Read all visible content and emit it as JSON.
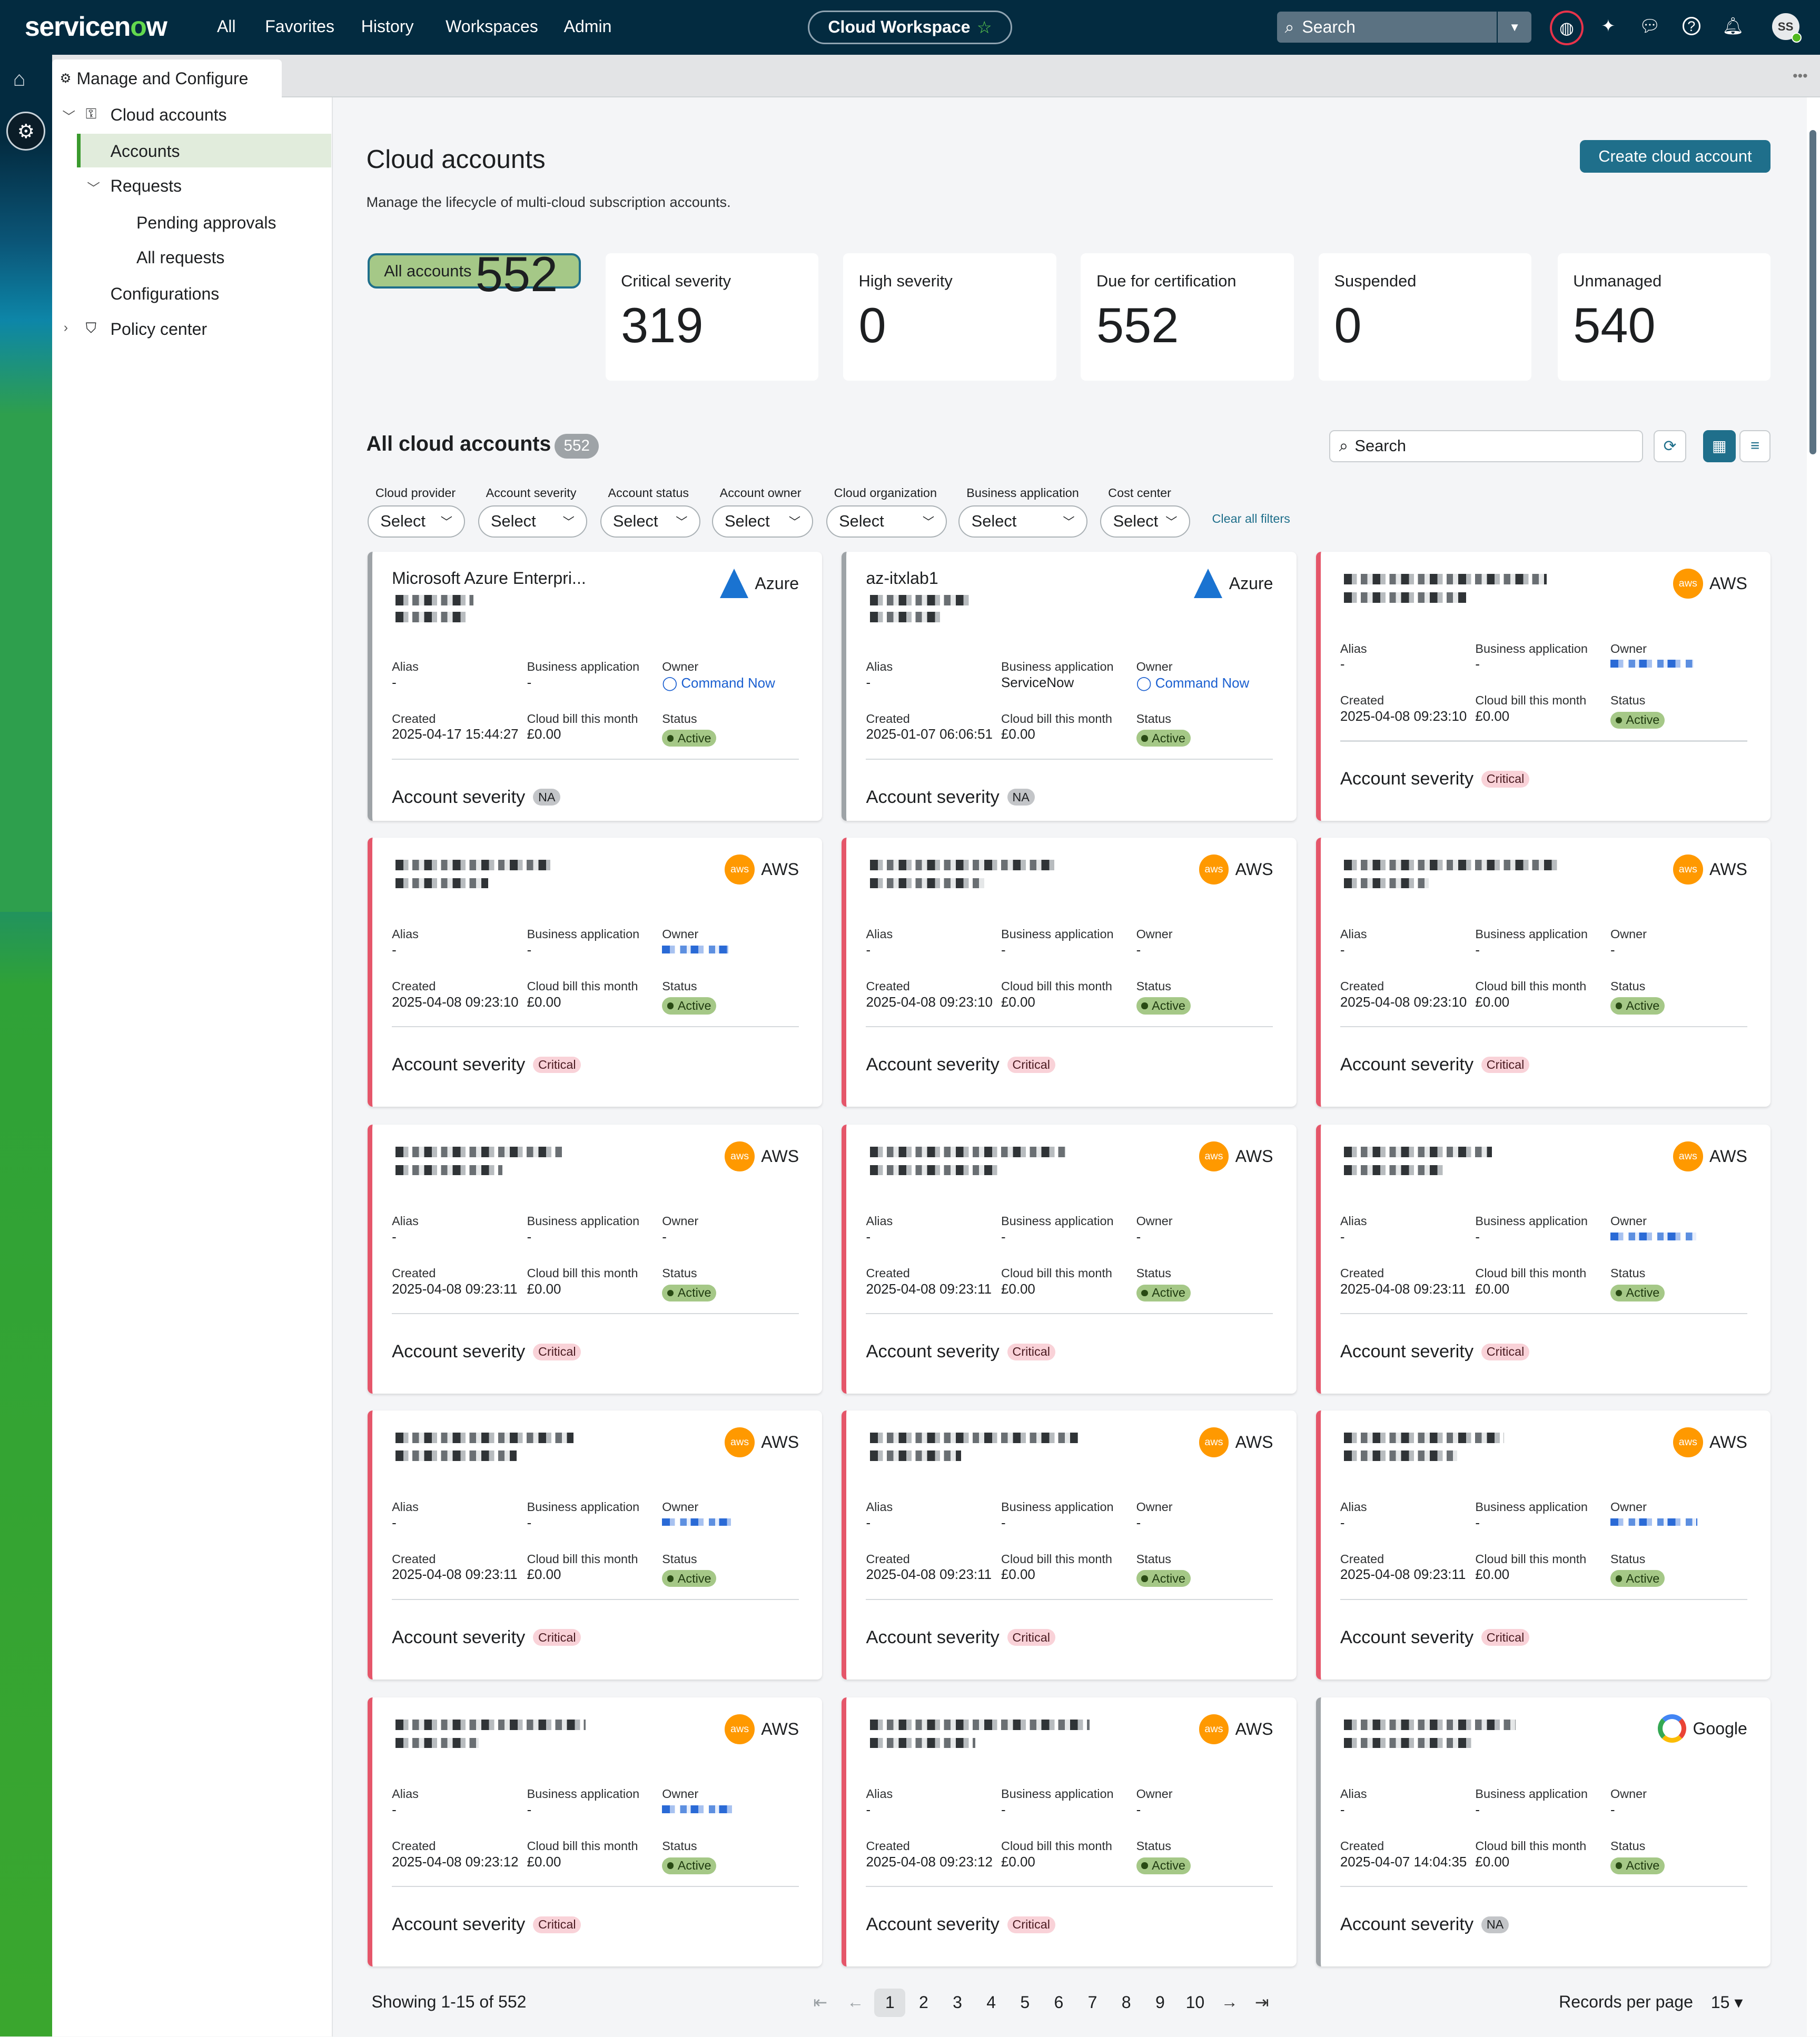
{
  "topbar": {
    "logo": "servicenow",
    "nav": [
      "All",
      "Favorites",
      "History",
      "Workspaces",
      "Admin"
    ],
    "workspace": "Cloud Workspace",
    "search_placeholder": "Search",
    "avatar": "SS",
    "icons": [
      "globe-icon",
      "sparkle-icon",
      "chat-icon",
      "help-icon",
      "bell-icon"
    ]
  },
  "tab": {
    "label": "Manage and Configure"
  },
  "sidebar": {
    "items": [
      {
        "label": "Cloud accounts"
      },
      {
        "label": "Accounts"
      },
      {
        "label": "Requests"
      },
      {
        "label": "Pending approvals"
      },
      {
        "label": "All requests"
      },
      {
        "label": "Configurations"
      },
      {
        "label": "Policy center"
      }
    ]
  },
  "page": {
    "title": "Cloud accounts",
    "subtitle": "Manage the lifecycle of multi-cloud subscription accounts.",
    "create_label": "Create cloud account"
  },
  "stats": [
    {
      "label": "All accounts",
      "value": "552"
    },
    {
      "label": "Critical severity",
      "value": "319"
    },
    {
      "label": "High severity",
      "value": "0"
    },
    {
      "label": "Due for certification",
      "value": "552"
    },
    {
      "label": "Suspended",
      "value": "0"
    },
    {
      "label": "Unmanaged",
      "value": "540"
    }
  ],
  "list": {
    "title": "All cloud accounts",
    "count": "552",
    "search_placeholder": "Search",
    "filters": [
      {
        "label": "Cloud provider",
        "value": "Select"
      },
      {
        "label": "Account severity",
        "value": "Select"
      },
      {
        "label": "Account status",
        "value": "Select"
      },
      {
        "label": "Account owner",
        "value": "Select"
      },
      {
        "label": "Cloud organization",
        "value": "Select"
      },
      {
        "label": "Business application",
        "value": "Select"
      },
      {
        "label": "Cost center",
        "value": "Select"
      }
    ],
    "clear_filters": "Clear all filters"
  },
  "card_labels": {
    "alias": "Alias",
    "business_app": "Business application",
    "owner": "Owner",
    "created": "Created",
    "bill": "Cloud bill this month",
    "status": "Status",
    "severity": "Account severity"
  },
  "cards": [
    {
      "name": "Microsoft Azure Enterpri...",
      "provider": "Azure",
      "alias": "-",
      "business_app": "-",
      "owner": "Command Now",
      "created": "2025-04-17 15:44:27",
      "bill": "£0.00",
      "status": "Active",
      "severity": "NA"
    },
    {
      "name": "az-itxlab1",
      "provider": "Azure",
      "alias": "-",
      "business_app": "ServiceNow",
      "owner": "Command Now",
      "created": "2025-01-07 06:06:51",
      "bill": "£0.00",
      "status": "Active",
      "severity": "NA"
    },
    {
      "name": "",
      "provider": "AWS",
      "alias": "-",
      "business_app": "-",
      "owner": "",
      "created": "2025-04-08 09:23:10",
      "bill": "£0.00",
      "status": "Active",
      "severity": "Critical"
    },
    {
      "name": "",
      "provider": "AWS",
      "alias": "-",
      "business_app": "-",
      "owner": "",
      "created": "2025-04-08 09:23:10",
      "bill": "£0.00",
      "status": "Active",
      "severity": "Critical"
    },
    {
      "name": "",
      "provider": "AWS",
      "alias": "-",
      "business_app": "-",
      "owner": "-",
      "created": "2025-04-08 09:23:10",
      "bill": "£0.00",
      "status": "Active",
      "severity": "Critical"
    },
    {
      "name": "",
      "provider": "AWS",
      "alias": "-",
      "business_app": "-",
      "owner": "-",
      "created": "2025-04-08 09:23:10",
      "bill": "£0.00",
      "status": "Active",
      "severity": "Critical"
    },
    {
      "name": "",
      "provider": "AWS",
      "alias": "-",
      "business_app": "-",
      "owner": "-",
      "created": "2025-04-08 09:23:11",
      "bill": "£0.00",
      "status": "Active",
      "severity": "Critical"
    },
    {
      "name": "",
      "provider": "AWS",
      "alias": "-",
      "business_app": "-",
      "owner": "-",
      "created": "2025-04-08 09:23:11",
      "bill": "£0.00",
      "status": "Active",
      "severity": "Critical"
    },
    {
      "name": "",
      "provider": "AWS",
      "alias": "-",
      "business_app": "-",
      "owner": "",
      "created": "2025-04-08 09:23:11",
      "bill": "£0.00",
      "status": "Active",
      "severity": "Critical"
    },
    {
      "name": "",
      "provider": "AWS",
      "alias": "-",
      "business_app": "-",
      "owner": "",
      "created": "2025-04-08 09:23:11",
      "bill": "£0.00",
      "status": "Active",
      "severity": "Critical"
    },
    {
      "name": "",
      "provider": "AWS",
      "alias": "-",
      "business_app": "-",
      "owner": "-",
      "created": "2025-04-08 09:23:11",
      "bill": "£0.00",
      "status": "Active",
      "severity": "Critical"
    },
    {
      "name": "",
      "provider": "AWS",
      "alias": "-",
      "business_app": "-",
      "owner": "",
      "created": "2025-04-08 09:23:11",
      "bill": "£0.00",
      "status": "Active",
      "severity": "Critical"
    },
    {
      "name": "",
      "provider": "AWS",
      "alias": "-",
      "business_app": "-",
      "owner": "",
      "created": "2025-04-08 09:23:12",
      "bill": "£0.00",
      "status": "Active",
      "severity": "Critical"
    },
    {
      "name": "",
      "provider": "AWS",
      "alias": "-",
      "business_app": "-",
      "owner": "-",
      "created": "2025-04-08 09:23:12",
      "bill": "£0.00",
      "status": "Active",
      "severity": "Critical"
    },
    {
      "name": "",
      "provider": "Google",
      "alias": "-",
      "business_app": "-",
      "owner": "-",
      "created": "2025-04-07 14:04:35",
      "bill": "£0.00",
      "status": "Active",
      "severity": "NA"
    }
  ],
  "pagination": {
    "showing": "Showing 1-15 of 552",
    "pages": [
      "1",
      "2",
      "3",
      "4",
      "5",
      "6",
      "7",
      "8",
      "9",
      "10"
    ],
    "current": "1",
    "records_label": "Records per page",
    "records_value": "15"
  },
  "colors": {
    "topbar": "#032b40",
    "accent": "#1f6f8b",
    "critical": "#e5566a",
    "active": "#a5c887",
    "brand_green": "#62d84e"
  }
}
